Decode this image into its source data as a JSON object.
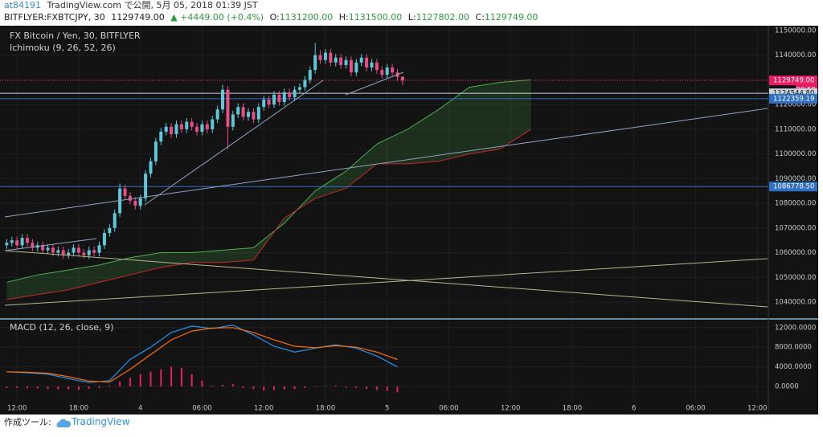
{
  "header": {
    "user": "at84191",
    "published": "TradingView.com で公開, 5月 05, 2018 01:39 JST",
    "symbol": "BITFLYER:FXBTCJPY, 30",
    "last": "1129749.00",
    "change": "▲ +4449.00 (+0.4%)",
    "o_label": "O:",
    "o_value": "1131200.00",
    "h_label": "H:",
    "h_value": "1131500.00",
    "l_label": "L:",
    "l_value": "1127802.00",
    "c_label": "C:",
    "c_value": "1129749.00"
  },
  "footer": {
    "made_with": "作成ツール:",
    "brand": "TradingView"
  },
  "chart_data": [
    {
      "type": "candlestick",
      "title": "FX Bitcoin / Yen, 30, BITFLYER",
      "indicator": "Ichimoku (9, 26, 52, 26)",
      "xlim": [
        -1,
        148
      ],
      "xticks": [
        {
          "value": 2,
          "label": "12:00"
        },
        {
          "value": 14,
          "label": "18:00"
        },
        {
          "value": 26,
          "label": "4"
        },
        {
          "value": 38,
          "label": "06:00"
        },
        {
          "value": 50,
          "label": "12:00"
        },
        {
          "value": 62,
          "label": "18:00"
        },
        {
          "value": 74,
          "label": "5"
        },
        {
          "value": 86,
          "label": "06:00"
        },
        {
          "value": 98,
          "label": "12:00"
        },
        {
          "value": 110,
          "label": "18:00"
        },
        {
          "value": 122,
          "label": "6"
        },
        {
          "value": 134,
          "label": "06:00"
        },
        {
          "value": 146,
          "label": "12:00"
        }
      ],
      "ylim": [
        1033500,
        1151600
      ],
      "yticks": [
        {
          "value": 1150000,
          "label": "1150000.00"
        },
        {
          "value": 1140000,
          "label": "1140000.00"
        },
        {
          "value": 1130000,
          "label": "1130000.00"
        },
        {
          "value": 1120000,
          "label": "1120000.00"
        },
        {
          "value": 1110000,
          "label": "1110000.00"
        },
        {
          "value": 1100000,
          "label": "1100000.00"
        },
        {
          "value": 1090000,
          "label": "1090000.00"
        },
        {
          "value": 1080000,
          "label": "1080000.00"
        },
        {
          "value": 1070000,
          "label": "1070000.00"
        },
        {
          "value": 1060000,
          "label": "1060000.00"
        },
        {
          "value": 1050000,
          "label": "1050000.00"
        },
        {
          "value": 1040000,
          "label": "1040000.00"
        }
      ],
      "grid": true,
      "up_color": "#5ec8d8",
      "down_color": "#e84e86",
      "open": [
        1063000,
        1064000,
        1065000,
        1063000,
        1066000,
        1064000,
        1062000,
        1063000,
        1061000,
        1062000,
        1060000,
        1061000,
        1059000,
        1060000,
        1062000,
        1060000,
        1059000,
        1061000,
        1060000,
        1063000,
        1068000,
        1070000,
        1076000,
        1086000,
        1083000,
        1081000,
        1079000,
        1082000,
        1092000,
        1097000,
        1105000,
        1109000,
        1111000,
        1108000,
        1112000,
        1110000,
        1113000,
        1111000,
        1109000,
        1112000,
        1110000,
        1114000,
        1118000,
        1126000,
        1111000,
        1116000,
        1119000,
        1115000,
        1117000,
        1114000,
        1119000,
        1122000,
        1120000,
        1124000,
        1121000,
        1125000,
        1123000,
        1126000,
        1127000,
        1130000,
        1134000,
        1140000,
        1138000,
        1141000,
        1137000,
        1139000,
        1136000,
        1138000,
        1133000,
        1137000,
        1139000,
        1135000,
        1137000,
        1134000,
        1132000,
        1135000,
        1133000,
        1131200
      ],
      "high": [
        1065500,
        1066500,
        1066500,
        1067500,
        1067500,
        1065500,
        1064500,
        1064500,
        1063500,
        1063500,
        1062500,
        1062500,
        1061500,
        1063500,
        1063500,
        1061500,
        1062500,
        1062500,
        1064500,
        1069500,
        1071500,
        1077500,
        1088000,
        1087500,
        1084500,
        1082500,
        1083500,
        1093500,
        1098500,
        1106500,
        1110500,
        1112500,
        1112500,
        1113500,
        1113500,
        1114500,
        1114500,
        1112500,
        1113500,
        1113500,
        1115500,
        1119500,
        1128000,
        1127500,
        1117500,
        1120500,
        1120500,
        1118500,
        1118500,
        1120500,
        1123500,
        1123500,
        1125500,
        1125500,
        1126500,
        1126500,
        1127500,
        1128500,
        1131500,
        1135500,
        1145000,
        1142000,
        1142500,
        1142500,
        1140500,
        1140500,
        1139500,
        1139500,
        1138500,
        1140500,
        1140500,
        1138500,
        1138500,
        1135500,
        1136500,
        1136500,
        1134500,
        1131500
      ],
      "low": [
        1061500,
        1062500,
        1061500,
        1061500,
        1062500,
        1060500,
        1060500,
        1059500,
        1059500,
        1058500,
        1058500,
        1057500,
        1057500,
        1058500,
        1058500,
        1057500,
        1057500,
        1058500,
        1058500,
        1061500,
        1066500,
        1068500,
        1074500,
        1081500,
        1079500,
        1077500,
        1077500,
        1080500,
        1090500,
        1095500,
        1103500,
        1107500,
        1106500,
        1106500,
        1108500,
        1108500,
        1109500,
        1107500,
        1107500,
        1108500,
        1108500,
        1112500,
        1116500,
        1102000,
        1109500,
        1114500,
        1113500,
        1113500,
        1112500,
        1112500,
        1117500,
        1118500,
        1118500,
        1119500,
        1119500,
        1121500,
        1121500,
        1124500,
        1125500,
        1128500,
        1132500,
        1136500,
        1136500,
        1135500,
        1135500,
        1134500,
        1134500,
        1131500,
        1131500,
        1135500,
        1133500,
        1133500,
        1132500,
        1130500,
        1130500,
        1131500,
        1129700,
        1127802
      ],
      "close": [
        1064000,
        1065000,
        1063000,
        1066000,
        1064000,
        1062000,
        1063000,
        1061000,
        1062000,
        1060000,
        1061000,
        1059000,
        1060000,
        1062000,
        1060000,
        1059000,
        1061000,
        1060000,
        1063000,
        1068000,
        1070000,
        1076000,
        1086000,
        1083000,
        1081000,
        1079000,
        1082000,
        1092000,
        1097000,
        1105000,
        1109000,
        1111000,
        1108000,
        1112000,
        1110000,
        1113000,
        1111000,
        1109000,
        1112000,
        1110000,
        1114000,
        1118000,
        1126000,
        1111000,
        1116000,
        1119000,
        1115000,
        1117000,
        1114000,
        1119000,
        1122000,
        1120000,
        1124000,
        1121000,
        1125000,
        1123000,
        1126000,
        1127000,
        1130000,
        1134000,
        1140000,
        1138000,
        1141000,
        1137000,
        1139000,
        1136000,
        1138000,
        1133000,
        1137000,
        1139000,
        1135000,
        1137000,
        1134000,
        1132000,
        1135000,
        1133000,
        1131200,
        1129749
      ],
      "cloud": {
        "x": [
          0,
          6,
          12,
          18,
          24,
          30,
          36,
          42,
          48,
          54,
          60,
          66,
          72,
          78,
          84,
          90,
          96,
          102
        ],
        "span_a": [
          1048000,
          1051000,
          1053000,
          1055000,
          1058000,
          1060000,
          1060000,
          1061000,
          1062000,
          1072000,
          1085000,
          1093000,
          1104000,
          1110000,
          1118000,
          1127000,
          1129000,
          1130000
        ],
        "span_b": [
          1041000,
          1043000,
          1045000,
          1048000,
          1051000,
          1054000,
          1056000,
          1056000,
          1057000,
          1074000,
          1082000,
          1086000,
          1096000,
          1096000,
          1097000,
          1100000,
          1102000,
          1110000
        ],
        "span_a_color": "#4caf50",
        "span_b_color": "#c62828",
        "fill": "#4caf50"
      },
      "price_lines": [
        {
          "value": 1129749,
          "label": "1129749.00",
          "color": "#e91e63",
          "text_color": "#ffffff",
          "dashed": true
        },
        {
          "value": 1124544.8,
          "label": "1124544.80",
          "color": "#c9d3dc",
          "text_color": "#111111",
          "dashed": false
        },
        {
          "value": 1122359.19,
          "label": "1122359.19",
          "color": "#2f6fc4",
          "text_color": "#ffffff",
          "dashed": false
        },
        {
          "value": 1086778.5,
          "label": "1086778.50",
          "color": "#2f6fc4",
          "text_color": "#ffffff",
          "dashed": false
        }
      ],
      "countdown": "20:59"
    },
    {
      "type": "macd",
      "title": "MACD (12, 26, close, 9)",
      "xlim": [
        -1,
        148
      ],
      "ylim": [
        -2600,
        13600
      ],
      "yticks": [
        {
          "value": 12000,
          "label": "12000.0000"
        },
        {
          "value": 8000,
          "label": "8000.0000"
        },
        {
          "value": 4000,
          "label": "4000.0000"
        },
        {
          "value": 0,
          "label": "0.0000"
        }
      ],
      "x": [
        0,
        4,
        8,
        12,
        16,
        20,
        24,
        28,
        32,
        36,
        40,
        44,
        48,
        52,
        56,
        60,
        64,
        68,
        72,
        76
      ],
      "lines": [
        {
          "color": "#2196f3",
          "values": [
            3000,
            2800,
            2500,
            1600,
            800,
            1200,
            5500,
            8000,
            11000,
            12300,
            11800,
            12500,
            10500,
            8200,
            7000,
            7800,
            8500,
            7800,
            6200,
            4000
          ]
        },
        {
          "color": "#ff6d00",
          "values": [
            3000,
            2900,
            2700,
            2000,
            1100,
            900,
            3500,
            6500,
            9500,
            11300,
            11900,
            12000,
            11000,
            9500,
            8200,
            7900,
            8300,
            8000,
            7000,
            5500
          ]
        }
      ],
      "histogram": {
        "color": "#e91e63",
        "x": [
          0,
          2,
          4,
          6,
          8,
          10,
          12,
          14,
          16,
          18,
          20,
          22,
          24,
          26,
          28,
          30,
          32,
          34,
          36,
          38,
          40,
          42,
          44,
          46,
          48,
          50,
          52,
          54,
          56,
          58,
          60,
          62,
          64,
          66,
          68,
          70,
          72,
          74,
          76
        ],
        "values": [
          -300,
          -300,
          -400,
          -400,
          -500,
          -600,
          -600,
          -700,
          -500,
          -300,
          200,
          1000,
          1800,
          2500,
          3000,
          3500,
          4000,
          3800,
          2500,
          1200,
          200,
          300,
          500,
          -300,
          -500,
          -800,
          -700,
          -600,
          -500,
          -300,
          -100,
          100,
          200,
          -200,
          -300,
          -500,
          -700,
          -900,
          -1200
        ]
      }
    }
  ]
}
